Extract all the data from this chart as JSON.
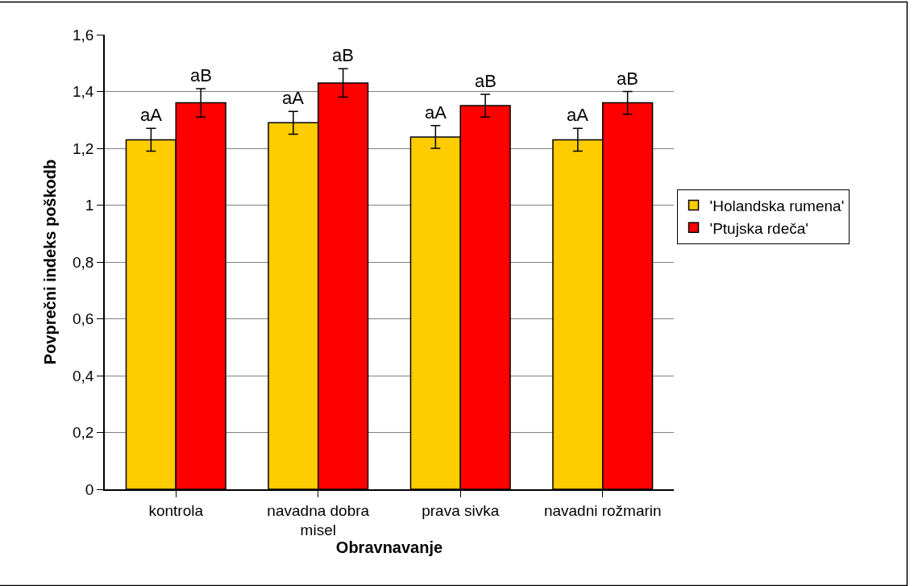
{
  "chart_data": {
    "type": "bar",
    "xlabel": "Obravnavanje",
    "ylabel": "Povprečni indeks poškodb",
    "categories": [
      "kontrola",
      "navadna dobra misel",
      "prava sivka",
      "navadni rožmarin"
    ],
    "series": [
      {
        "name": "'Holandska rumena'",
        "color": "#ffcc00",
        "values": [
          1.23,
          1.29,
          1.24,
          1.23
        ],
        "errors": [
          0.04,
          0.04,
          0.04,
          0.04
        ],
        "value_labels": [
          "aA",
          "aA",
          "aA",
          "aA"
        ]
      },
      {
        "name": "'Ptujska rdeča'",
        "color": "#ff0000",
        "values": [
          1.36,
          1.43,
          1.35,
          1.36
        ],
        "errors": [
          0.05,
          0.05,
          0.04,
          0.04
        ],
        "value_labels": [
          "aB",
          "aB",
          "aB",
          "aB"
        ]
      }
    ],
    "ylim": [
      0,
      1.6
    ],
    "yticks": [
      0,
      {
        "value": 0.2,
        "label": "0,2"
      },
      {
        "value": 0.4,
        "label": "0,4"
      },
      {
        "value": 0.6,
        "label": "0,6"
      },
      {
        "value": 0.8,
        "label": "0,8"
      },
      1,
      {
        "value": 1.2,
        "label": "1,2"
      },
      {
        "value": 1.4,
        "label": "1,4"
      },
      {
        "value": 1.6,
        "label": "1,6"
      }
    ],
    "grid": "y",
    "legend": "right"
  }
}
